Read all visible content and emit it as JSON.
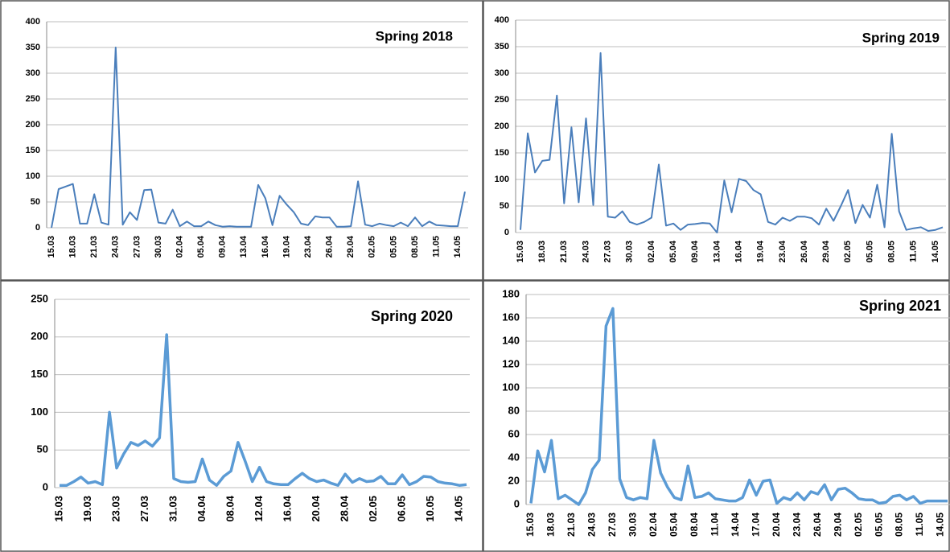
{
  "chart_data": [
    {
      "type": "line",
      "title": "Spring 2018",
      "color": "#4a7ebb",
      "grid": true,
      "categories": [
        "15.03",
        null,
        null,
        "18.03",
        null,
        null,
        "21.03",
        null,
        null,
        "24.03",
        null,
        null,
        "27.03",
        null,
        null,
        "30.03",
        null,
        null,
        "02.04",
        null,
        null,
        "05.04",
        null,
        null,
        "09.04",
        null,
        null,
        "13.04",
        null,
        null,
        "16.04",
        null,
        null,
        "19.04",
        null,
        null,
        "23.04",
        null,
        null,
        "26.04",
        null,
        null,
        "29.04",
        null,
        null,
        "02.05",
        null,
        null,
        "05.05",
        null,
        null,
        "08.05",
        null,
        null,
        "11.05",
        null,
        null,
        "14.05",
        null
      ],
      "values": [
        0,
        75,
        80,
        85,
        8,
        8,
        65,
        10,
        6,
        350,
        6,
        30,
        15,
        73,
        74,
        10,
        8,
        35,
        3,
        12,
        3,
        3,
        12,
        5,
        2,
        3,
        2,
        2,
        2,
        83,
        57,
        5,
        62,
        45,
        30,
        8,
        5,
        22,
        20,
        20,
        2,
        2,
        3,
        90,
        6,
        3,
        8,
        5,
        3,
        10,
        3,
        20,
        3,
        12,
        5,
        4,
        3,
        3,
        70
      ],
      "ylim": [
        0,
        400
      ],
      "yticks": [
        0,
        50,
        100,
        150,
        200,
        250,
        300,
        350,
        400
      ]
    },
    {
      "type": "line",
      "title": "Spring 2019",
      "color": "#4a7ebb",
      "grid": true,
      "categories": [
        "15.03",
        null,
        null,
        "18.03",
        null,
        null,
        "21.03",
        null,
        null,
        "24.03",
        null,
        null,
        "27.03",
        null,
        null,
        "30.03",
        null,
        null,
        "02.04",
        null,
        null,
        "05.04",
        null,
        null,
        "09.04",
        null,
        null,
        "13.04",
        null,
        null,
        "16.04",
        null,
        null,
        "19.04",
        null,
        null,
        "23.04",
        null,
        null,
        "26.04",
        null,
        null,
        "29.04",
        null,
        null,
        "02.05",
        null,
        null,
        "05.05",
        null,
        null,
        "08.05",
        null,
        null,
        "11.05",
        null,
        null,
        "14.05",
        null
      ],
      "values": [
        5,
        187,
        113,
        135,
        137,
        258,
        55,
        198,
        57,
        215,
        52,
        338,
        30,
        28,
        40,
        20,
        15,
        20,
        28,
        128,
        13,
        17,
        5,
        15,
        16,
        18,
        17,
        0,
        98,
        38,
        101,
        97,
        80,
        72,
        20,
        15,
        28,
        22,
        30,
        30,
        27,
        15,
        45,
        22,
        50,
        80,
        18,
        52,
        28,
        90,
        10,
        186,
        40,
        5,
        8,
        10,
        3,
        5,
        10
      ],
      "ylim": [
        0,
        400
      ],
      "yticks": [
        0,
        50,
        100,
        150,
        200,
        250,
        300,
        350,
        400
      ]
    },
    {
      "type": "line",
      "title": "Spring 2020",
      "color": "#5b9bd5",
      "grid": true,
      "categories": [
        "15.03",
        null,
        null,
        null,
        "19.03",
        null,
        null,
        null,
        "23.03",
        null,
        null,
        null,
        "27.03",
        null,
        null,
        null,
        "31.03",
        null,
        null,
        null,
        "04.04",
        null,
        null,
        null,
        "08.04",
        null,
        null,
        null,
        "12.04",
        null,
        null,
        null,
        "16.04",
        null,
        null,
        null,
        "20.04",
        null,
        null,
        null,
        "28.04",
        null,
        null,
        null,
        "02.05",
        null,
        null,
        null,
        "06.05",
        null,
        null,
        null,
        "10.05",
        null,
        null,
        null,
        "14.05",
        null
      ],
      "values": [
        3,
        3,
        8,
        14,
        6,
        8,
        4,
        100,
        26,
        45,
        60,
        56,
        62,
        55,
        66,
        203,
        12,
        8,
        7,
        8,
        38,
        10,
        3,
        15,
        22,
        60,
        35,
        8,
        27,
        8,
        5,
        4,
        4,
        12,
        19,
        12,
        8,
        10,
        6,
        3,
        18,
        7,
        12,
        8,
        9,
        15,
        5,
        5,
        17,
        4,
        8,
        15,
        14,
        8,
        6,
        5,
        3,
        4
      ],
      "ylim": [
        0,
        250
      ],
      "yticks": [
        0,
        50,
        100,
        150,
        200,
        250
      ]
    },
    {
      "type": "line",
      "title": "Spring 2021",
      "color": "#5b9bd5",
      "grid": true,
      "categories": [
        "15.03",
        null,
        null,
        "18.03",
        null,
        null,
        "21.03",
        null,
        null,
        "24.03",
        null,
        null,
        "27.03",
        null,
        null,
        "30.03",
        null,
        null,
        "02.04",
        null,
        null,
        "05.04",
        null,
        null,
        "08.04",
        null,
        null,
        "11.04",
        null,
        null,
        "14.04",
        null,
        null,
        "17.04",
        null,
        null,
        "20.04",
        null,
        null,
        "23.04",
        null,
        null,
        "26.04",
        null,
        null,
        "29.04",
        null,
        null,
        "02.05",
        null,
        null,
        "05.05",
        null,
        null,
        "08.05",
        null,
        null,
        "11.05",
        null,
        null,
        "14.05",
        null
      ],
      "values": [
        1,
        46,
        28,
        55,
        5,
        8,
        4,
        0,
        10,
        30,
        38,
        153,
        168,
        22,
        6,
        4,
        6,
        5,
        55,
        27,
        15,
        6,
        4,
        33,
        6,
        7,
        10,
        5,
        4,
        3,
        3,
        6,
        21,
        8,
        20,
        21,
        1,
        6,
        4,
        10,
        4,
        11,
        9,
        17,
        4,
        13,
        14,
        10,
        5,
        4,
        4,
        1,
        2,
        7,
        8,
        4,
        7,
        1,
        3,
        3,
        3,
        3
      ],
      "ylim": [
        0,
        180
      ],
      "yticks": [
        0,
        20,
        40,
        60,
        80,
        100,
        120,
        140,
        160,
        180
      ]
    }
  ]
}
